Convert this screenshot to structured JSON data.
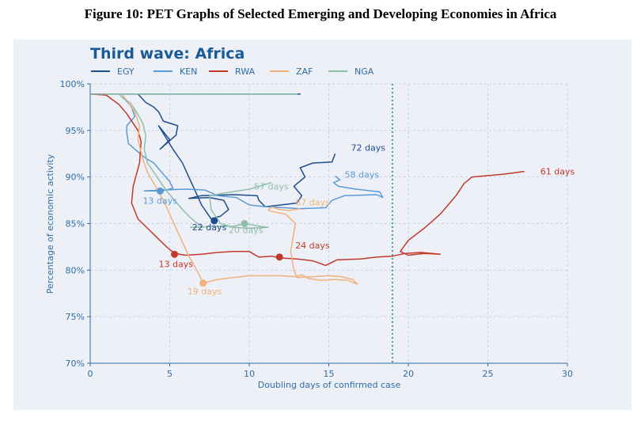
{
  "figure_caption": "Figure 10: PET Graphs of Selected Emerging and Developing Economies in Africa",
  "colors": {
    "EGY": "#1f4e8c",
    "KEN": "#5b9bd5",
    "RWA": "#c0392b",
    "ZAF": "#f0b27a",
    "NGA": "#8fbfaa",
    "title": "#1a5a96",
    "axis": "#2e6da4",
    "grid": "#c9d2e6",
    "threshold": "#3a9fa8",
    "panel": "#eef0f8"
  },
  "chart_data": {
    "type": "line",
    "title": "Third wave: Africa",
    "xlabel": "Doubling days of confirmed case",
    "ylabel": "Percentage of economic activity",
    "xlim": [
      0,
      30
    ],
    "ylim": [
      70,
      100
    ],
    "x_ticks": [
      "0",
      "5",
      "10",
      "15",
      "20",
      "25",
      "30"
    ],
    "y_ticks": [
      "70%",
      "75%",
      "80%",
      "85%",
      "90%",
      "95%",
      "100%"
    ],
    "grid": true,
    "legend_position": "top-left",
    "threshold_x": 19,
    "series": [
      {
        "name": "EGY",
        "color": "#1f4e8c",
        "points": [
          [
            0,
            98.9
          ],
          [
            8,
            98.9
          ],
          [
            13.2,
            98.9
          ],
          [
            8,
            98.9
          ],
          [
            3,
            98.9
          ],
          [
            3.5,
            98
          ],
          [
            4,
            97.5
          ],
          [
            4.3,
            97
          ],
          [
            4.6,
            96
          ],
          [
            5.5,
            95.5
          ],
          [
            5.4,
            94.5
          ],
          [
            4.4,
            93
          ],
          [
            5,
            94
          ],
          [
            4.3,
            95.5
          ],
          [
            5.2,
            93
          ],
          [
            5.8,
            91.5
          ],
          [
            6.2,
            90
          ],
          [
            6.6,
            88.5
          ],
          [
            7,
            87
          ],
          [
            7.6,
            85.5
          ],
          [
            8.2,
            85.8
          ],
          [
            8.7,
            86.5
          ],
          [
            8.4,
            87.5
          ],
          [
            7.5,
            87.8
          ],
          [
            6.2,
            87.7
          ],
          [
            7,
            88
          ],
          [
            9,
            88.1
          ],
          [
            10.5,
            88
          ],
          [
            10.6,
            87.5
          ],
          [
            11,
            86.8
          ],
          [
            13,
            87.2
          ],
          [
            13.3,
            88
          ],
          [
            12.8,
            89
          ],
          [
            13.5,
            90
          ],
          [
            13.2,
            91
          ],
          [
            14,
            91.5
          ],
          [
            15.2,
            91.6
          ],
          [
            15.4,
            92.5
          ]
        ],
        "marker": [
          7.8,
          85.3
        ],
        "label": "72 days",
        "marker_label": "22 days"
      },
      {
        "name": "KEN",
        "color": "#5b9bd5",
        "points": [
          [
            2,
            98.9
          ],
          [
            2.2,
            98.3
          ],
          [
            2.6,
            97.5
          ],
          [
            2.8,
            96.5
          ],
          [
            2.3,
            95.5
          ],
          [
            2.3,
            94.8
          ],
          [
            2.4,
            93.6
          ],
          [
            3,
            92.7
          ],
          [
            3.5,
            92
          ],
          [
            4,
            91.5
          ],
          [
            4.5,
            90.5
          ],
          [
            5,
            89.5
          ],
          [
            5.2,
            88.8
          ],
          [
            4.5,
            88.5
          ],
          [
            3.4,
            88.5
          ],
          [
            4.5,
            88.6
          ],
          [
            6,
            88.7
          ],
          [
            7.2,
            88.6
          ],
          [
            8,
            88
          ],
          [
            9.2,
            87.8
          ],
          [
            10,
            87
          ],
          [
            11,
            86.8
          ],
          [
            12.2,
            86.7
          ],
          [
            13.2,
            86.6
          ],
          [
            14.8,
            86.7
          ],
          [
            15.2,
            87.5
          ],
          [
            16,
            88
          ],
          [
            18,
            88.1
          ],
          [
            18.4,
            87.8
          ],
          [
            18.2,
            88.4
          ],
          [
            16.7,
            88.7
          ],
          [
            15.6,
            89
          ],
          [
            15.3,
            89.4
          ],
          [
            15.7,
            89.7
          ],
          [
            15.4,
            90.1
          ]
        ],
        "marker": [
          4.4,
          88.5
        ],
        "label": "58 days",
        "marker_label": "13 days"
      },
      {
        "name": "RWA",
        "color": "#c0392b",
        "points": [
          [
            0,
            98.9
          ],
          [
            1,
            98.8
          ],
          [
            1.8,
            97.8
          ],
          [
            2.3,
            96.8
          ],
          [
            3,
            95
          ],
          [
            3.2,
            93.8
          ],
          [
            3.1,
            91.5
          ],
          [
            2.7,
            89
          ],
          [
            2.6,
            87.2
          ],
          [
            3,
            85.5
          ],
          [
            3.6,
            84.5
          ],
          [
            4.2,
            83.5
          ],
          [
            4.8,
            82.5
          ],
          [
            5.3,
            81.8
          ],
          [
            6,
            81.6
          ],
          [
            7,
            81.7
          ],
          [
            8,
            81.9
          ],
          [
            9,
            82
          ],
          [
            10,
            82
          ],
          [
            10.3,
            81.7
          ],
          [
            10.6,
            81.4
          ],
          [
            11.4,
            81.5
          ],
          [
            12,
            81.3
          ],
          [
            13,
            81.2
          ],
          [
            14,
            81
          ],
          [
            14.8,
            80.5
          ],
          [
            15.5,
            81.1
          ],
          [
            17,
            81.2
          ],
          [
            18,
            81.4
          ],
          [
            19,
            81.5
          ],
          [
            19.8,
            81.8
          ],
          [
            20.8,
            81.9
          ],
          [
            22,
            81.7
          ],
          [
            21,
            81.8
          ],
          [
            20,
            81.6
          ],
          [
            19.5,
            82
          ],
          [
            20,
            83.2
          ],
          [
            21,
            84.5
          ],
          [
            22,
            86
          ],
          [
            23,
            88
          ],
          [
            23.5,
            89.3
          ],
          [
            24,
            90
          ],
          [
            26,
            90.3
          ],
          [
            27.3,
            90.6
          ]
        ],
        "marker": [
          5.3,
          81.7
        ],
        "marker2": [
          11.9,
          81.4
        ],
        "label": "61 days",
        "marker_label": "13 days",
        "marker2_label": "24 days"
      },
      {
        "name": "ZAF",
        "color": "#f0b27a",
        "points": [
          [
            2,
            98.9
          ],
          [
            2.8,
            97
          ],
          [
            3.1,
            95.5
          ],
          [
            3,
            94
          ],
          [
            3.3,
            92
          ],
          [
            3.6,
            90.5
          ],
          [
            4.1,
            89
          ],
          [
            4.6,
            87.5
          ],
          [
            5,
            86
          ],
          [
            5.4,
            84.5
          ],
          [
            5.8,
            83
          ],
          [
            6.2,
            81.5
          ],
          [
            6.7,
            80
          ],
          [
            7.1,
            78.6
          ],
          [
            8,
            79
          ],
          [
            9,
            79.2
          ],
          [
            10,
            79.4
          ],
          [
            11,
            79.4
          ],
          [
            12,
            79.4
          ],
          [
            12.9,
            79.3
          ],
          [
            13.3,
            79.5
          ],
          [
            13.7,
            79.1
          ],
          [
            14.5,
            78.9
          ],
          [
            15.4,
            79
          ],
          [
            16.2,
            78.9
          ],
          [
            16.8,
            78.5
          ],
          [
            16.5,
            79
          ],
          [
            15.8,
            79.3
          ],
          [
            15,
            79.4
          ],
          [
            14,
            79.3
          ],
          [
            13,
            79.2
          ],
          [
            12.8,
            80
          ],
          [
            12.6,
            82
          ],
          [
            12.8,
            84
          ],
          [
            12.9,
            85
          ],
          [
            12.3,
            86
          ],
          [
            11.7,
            86.2
          ],
          [
            11.2,
            86.4
          ],
          [
            11.4,
            86.8
          ],
          [
            11.9,
            86.5
          ],
          [
            12.5,
            86.4
          ],
          [
            13.2,
            86.6
          ]
        ],
        "marker": [
          7.1,
          78.6
        ],
        "label": "67 days",
        "marker_label": "19 days"
      },
      {
        "name": "NGA",
        "color": "#8fbfaa",
        "points": [
          [
            0,
            98.9
          ],
          [
            13,
            98.9
          ],
          [
            4,
            98.9
          ],
          [
            1.8,
            98.9
          ],
          [
            2.1,
            98.4
          ],
          [
            2.5,
            98
          ],
          [
            2.9,
            97
          ],
          [
            3.3,
            95.8
          ],
          [
            3.5,
            94.5
          ],
          [
            3.4,
            93
          ],
          [
            3.6,
            91.5
          ],
          [
            4.2,
            90
          ],
          [
            4.8,
            88.5
          ],
          [
            5.3,
            87.5
          ],
          [
            5.8,
            86.5
          ],
          [
            6.2,
            85.8
          ],
          [
            6.6,
            85.2
          ],
          [
            7.1,
            84.6
          ],
          [
            6.3,
            84.6
          ],
          [
            8,
            84.7
          ],
          [
            9,
            84.7
          ],
          [
            9.7,
            85
          ],
          [
            10.7,
            84.7
          ],
          [
            11.2,
            84.6
          ],
          [
            10,
            84.5
          ],
          [
            9,
            84.6
          ],
          [
            8.2,
            85
          ],
          [
            7.6,
            86.5
          ],
          [
            7.5,
            88
          ],
          [
            8.5,
            88.3
          ],
          [
            10,
            88.7
          ],
          [
            11,
            89.2
          ],
          [
            11.4,
            89.4
          ]
        ],
        "marker": [
          9.7,
          85
        ],
        "label": "57 days",
        "marker_label": "20 days"
      }
    ]
  }
}
